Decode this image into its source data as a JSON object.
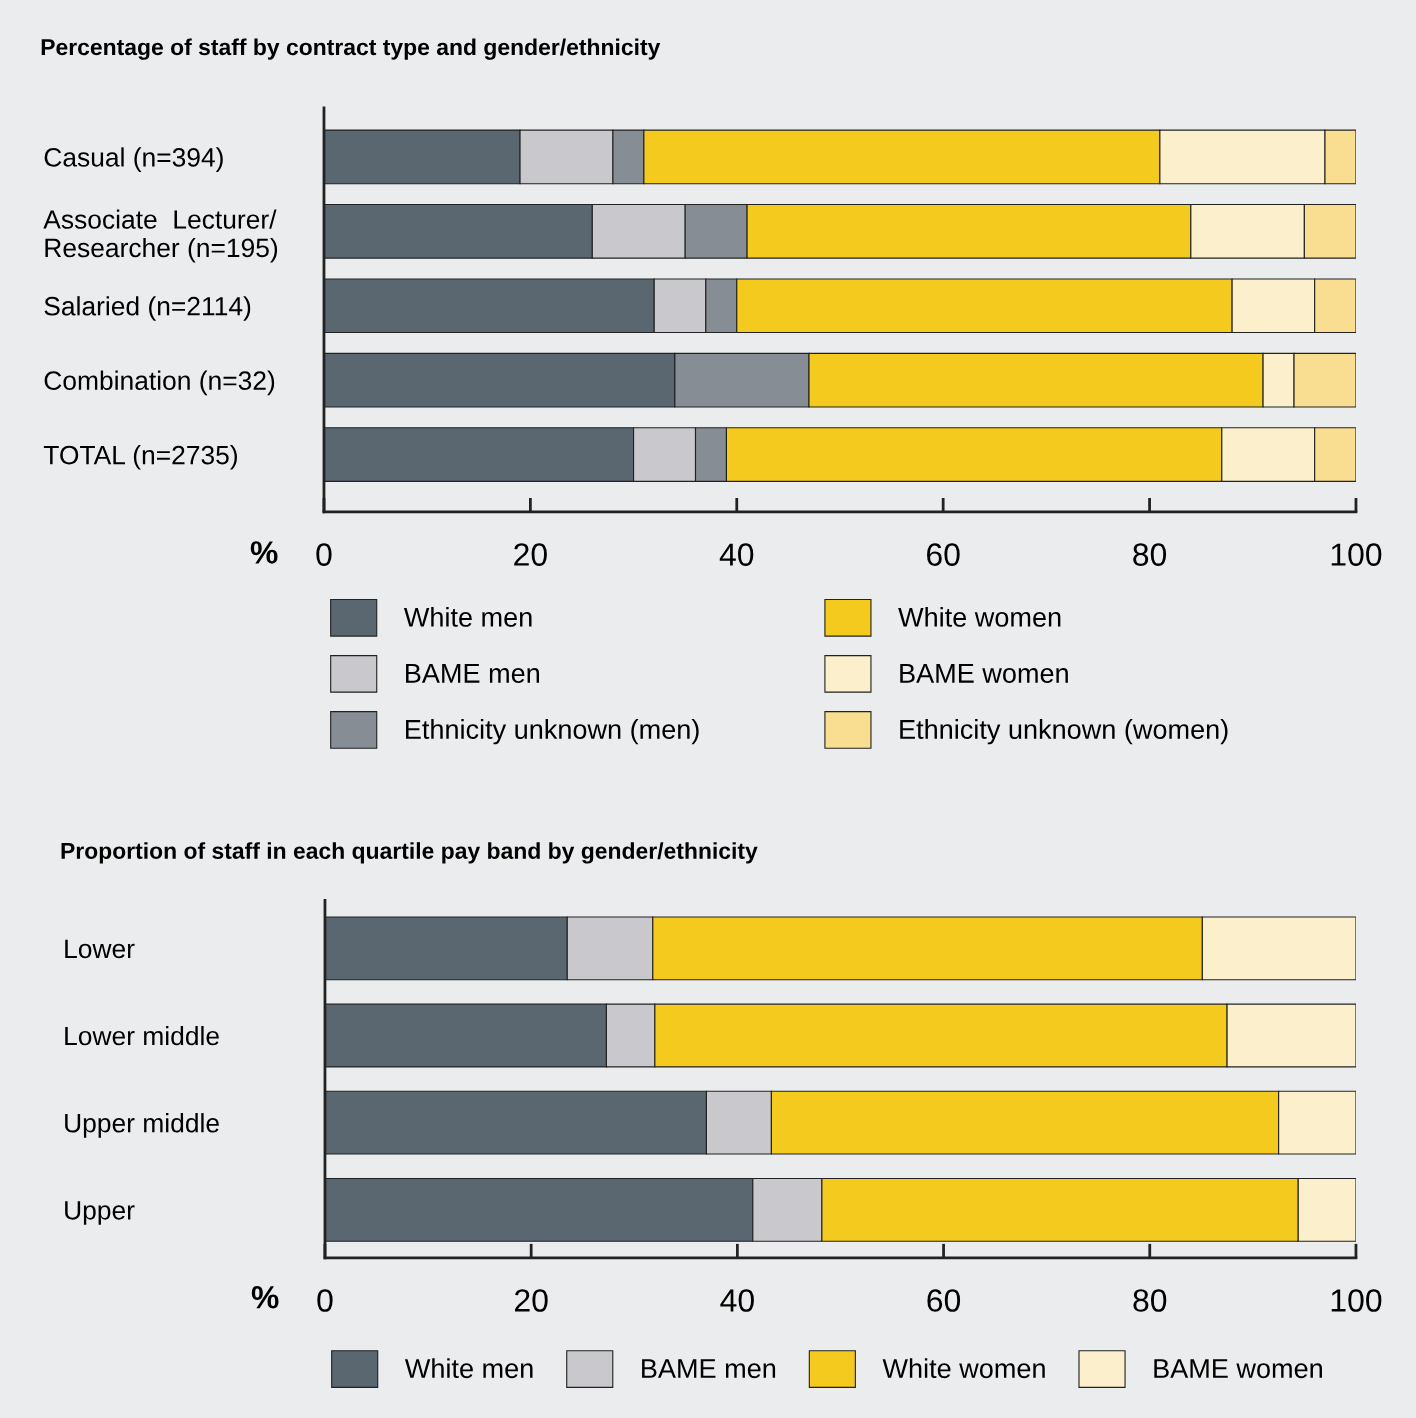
{
  "chart_data": [
    {
      "type": "bar",
      "orientation": "horizontal",
      "stacked": true,
      "title": "Percentage of staff by contract type and gender/ethnicity",
      "xlabel": "%",
      "categories": [
        "Casual (n=394)",
        "Associate  Lecturer/\nResearcher (n=195)",
        "Salaried (n=2114)",
        "Combination (n=32)",
        "TOTAL (n=2735)"
      ],
      "series": [
        {
          "name": "White men",
          "color": "#5a6670",
          "values": [
            19,
            26,
            32,
            34,
            30
          ]
        },
        {
          "name": "BAME men",
          "color": "#c9c9cd",
          "values": [
            9,
            9,
            5,
            0,
            6
          ]
        },
        {
          "name": "Ethnicity unknown (men)",
          "color": "#878d95",
          "values": [
            3,
            6,
            3,
            13,
            3
          ]
        },
        {
          "name": "White women",
          "color": "#f4ca1f",
          "values": [
            50,
            43,
            48,
            44,
            48
          ]
        },
        {
          "name": "BAME women",
          "color": "#fbf0cb",
          "values": [
            16,
            11,
            8,
            3,
            9
          ]
        },
        {
          "name": "Ethnicity unknown (women)",
          "color": "#f9de91",
          "values": [
            3,
            5,
            4,
            6,
            4
          ]
        }
      ],
      "xlim": [
        0,
        100
      ],
      "xticks": [
        0,
        20,
        40,
        60,
        80,
        100
      ],
      "grid": false,
      "legend": "bottom"
    },
    {
      "type": "bar",
      "orientation": "horizontal",
      "stacked": true,
      "title": "Proportion of staff in each quartile pay band by gender/ethnicity",
      "xlabel": "%",
      "categories": [
        "Lower",
        "Lower middle",
        "Upper middle",
        "Upper"
      ],
      "series": [
        {
          "name": "White men",
          "color": "#5a6670",
          "values": [
            23.5,
            27.3,
            37.0,
            41.5
          ]
        },
        {
          "name": "BAME men",
          "color": "#c9c9cd",
          "values": [
            8.3,
            4.7,
            6.3,
            6.7
          ]
        },
        {
          "name": "White women",
          "color": "#f4ca1f",
          "values": [
            53.3,
            55.5,
            49.2,
            46.2
          ]
        },
        {
          "name": "BAME women",
          "color": "#fbf0cb",
          "values": [
            14.9,
            12.5,
            7.5,
            5.6
          ]
        }
      ],
      "xlim": [
        0,
        100
      ],
      "xticks": [
        0,
        20,
        40,
        60,
        80,
        100
      ],
      "grid": false,
      "legend": "bottom"
    }
  ]
}
